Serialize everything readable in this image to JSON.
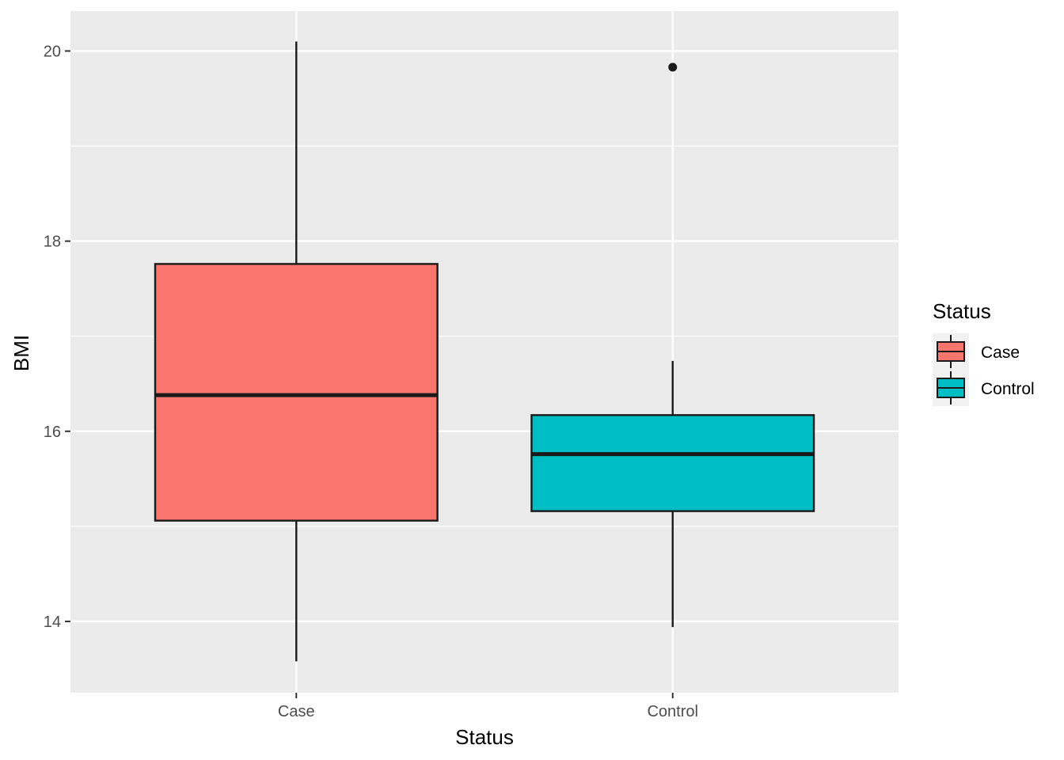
{
  "chart_data": {
    "type": "boxplot",
    "xlabel": "Status",
    "ylabel": "BMI",
    "ylim": [
      13.25,
      20.42
    ],
    "yticks": [
      14,
      16,
      18,
      20
    ],
    "categories": [
      "Case",
      "Control"
    ],
    "boxes": [
      {
        "category": "Case",
        "lower_whisker": 13.58,
        "q1": 15.06,
        "median": 16.38,
        "q3": 17.76,
        "upper_whisker": 20.1,
        "outliers": [],
        "fill": "#F8766D"
      },
      {
        "category": "Control",
        "lower_whisker": 13.94,
        "q1": 15.16,
        "median": 15.76,
        "q3": 16.17,
        "upper_whisker": 16.74,
        "outliers": [
          19.83
        ],
        "fill": "#00BFC4"
      }
    ],
    "legend": {
      "title": "Status",
      "position": "right",
      "items": [
        {
          "label": "Case",
          "color": "#F8766D"
        },
        {
          "label": "Control",
          "color": "#00BFC4"
        }
      ]
    },
    "grid": true,
    "panel_background": "#EBEBEB"
  }
}
